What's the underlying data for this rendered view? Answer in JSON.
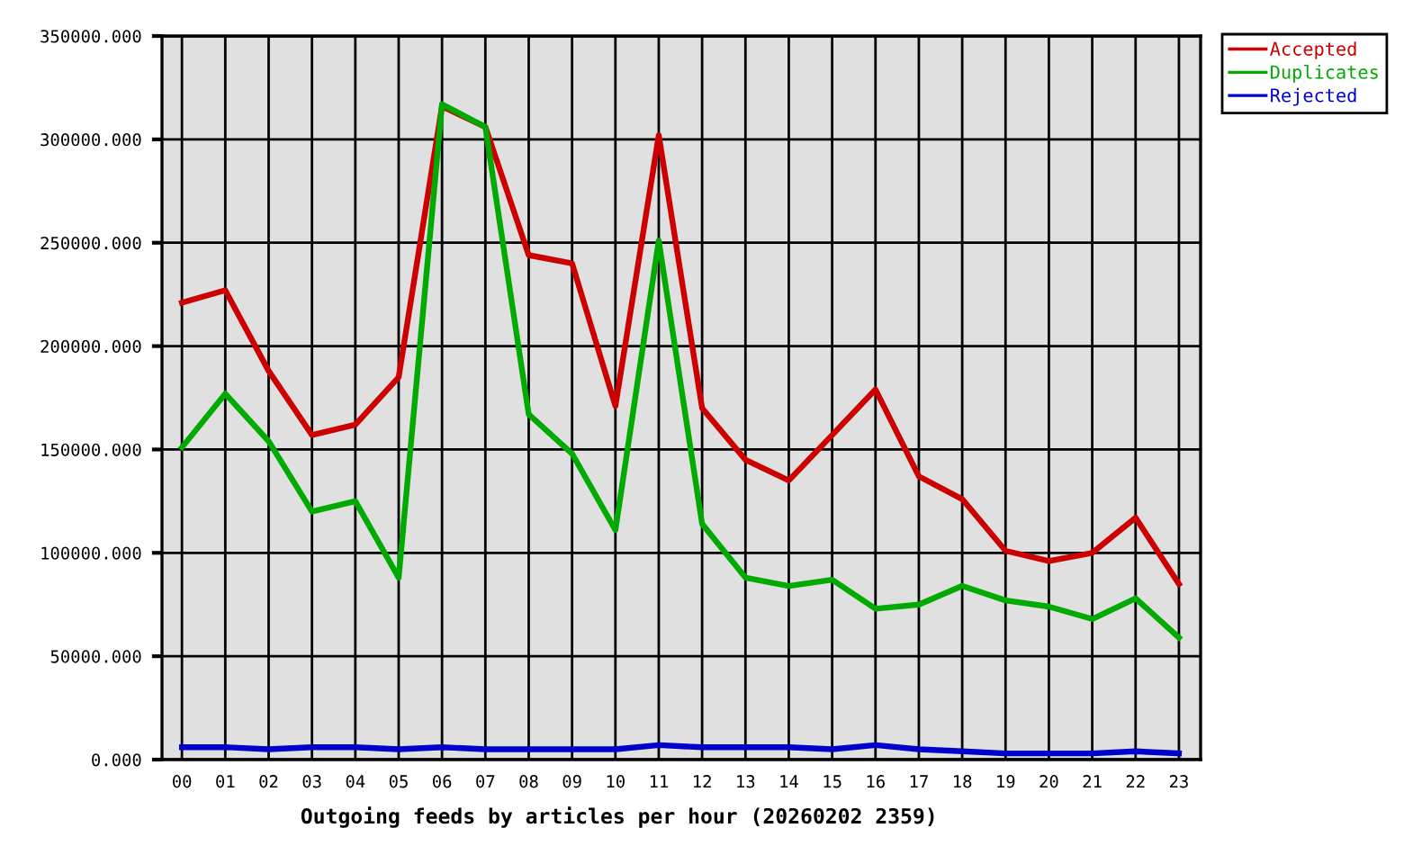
{
  "chart_data": {
    "type": "line",
    "xlabel": "Outgoing feeds by articles per hour (20260202 2359)",
    "categories": [
      "00",
      "01",
      "02",
      "03",
      "04",
      "05",
      "06",
      "07",
      "08",
      "09",
      "10",
      "11",
      "12",
      "13",
      "14",
      "15",
      "16",
      "17",
      "18",
      "19",
      "20",
      "21",
      "22",
      "23"
    ],
    "series": [
      {
        "name": "Accepted",
        "color": "#cc0000",
        "values": [
          221000,
          227000,
          188000,
          157000,
          162000,
          185000,
          316000,
          306000,
          244000,
          240000,
          171000,
          302000,
          170000,
          145000,
          135000,
          157000,
          179000,
          137000,
          126000,
          101000,
          96000,
          100000,
          117000,
          85000
        ]
      },
      {
        "name": "Duplicates",
        "color": "#00aa00",
        "values": [
          151000,
          177000,
          154000,
          120000,
          125000,
          88000,
          317000,
          306000,
          167000,
          148000,
          111000,
          251000,
          114000,
          88000,
          84000,
          87000,
          73000,
          75000,
          84000,
          77000,
          74000,
          68000,
          78000,
          59000
        ]
      },
      {
        "name": "Rejected",
        "color": "#0000cc",
        "values": [
          6000,
          6000,
          5000,
          6000,
          6000,
          5000,
          6000,
          5000,
          5000,
          5000,
          5000,
          7000,
          6000,
          6000,
          6000,
          5000,
          7000,
          5000,
          4000,
          3000,
          3000,
          3000,
          4000,
          3000
        ]
      }
    ],
    "ylim": [
      0,
      350000
    ],
    "yticks": [
      {
        "value": 0,
        "label": "0.000"
      },
      {
        "value": 50000,
        "label": "50000.000"
      },
      {
        "value": 100000,
        "label": "100000.000"
      },
      {
        "value": 150000,
        "label": "150000.000"
      },
      {
        "value": 200000,
        "label": "200000.000"
      },
      {
        "value": 250000,
        "label": "250000.000"
      },
      {
        "value": 300000,
        "label": "300000.000"
      },
      {
        "value": 350000,
        "label": "350000.000"
      }
    ],
    "grid": true,
    "legend": "top right",
    "marker": "none",
    "line_style": "solid"
  }
}
